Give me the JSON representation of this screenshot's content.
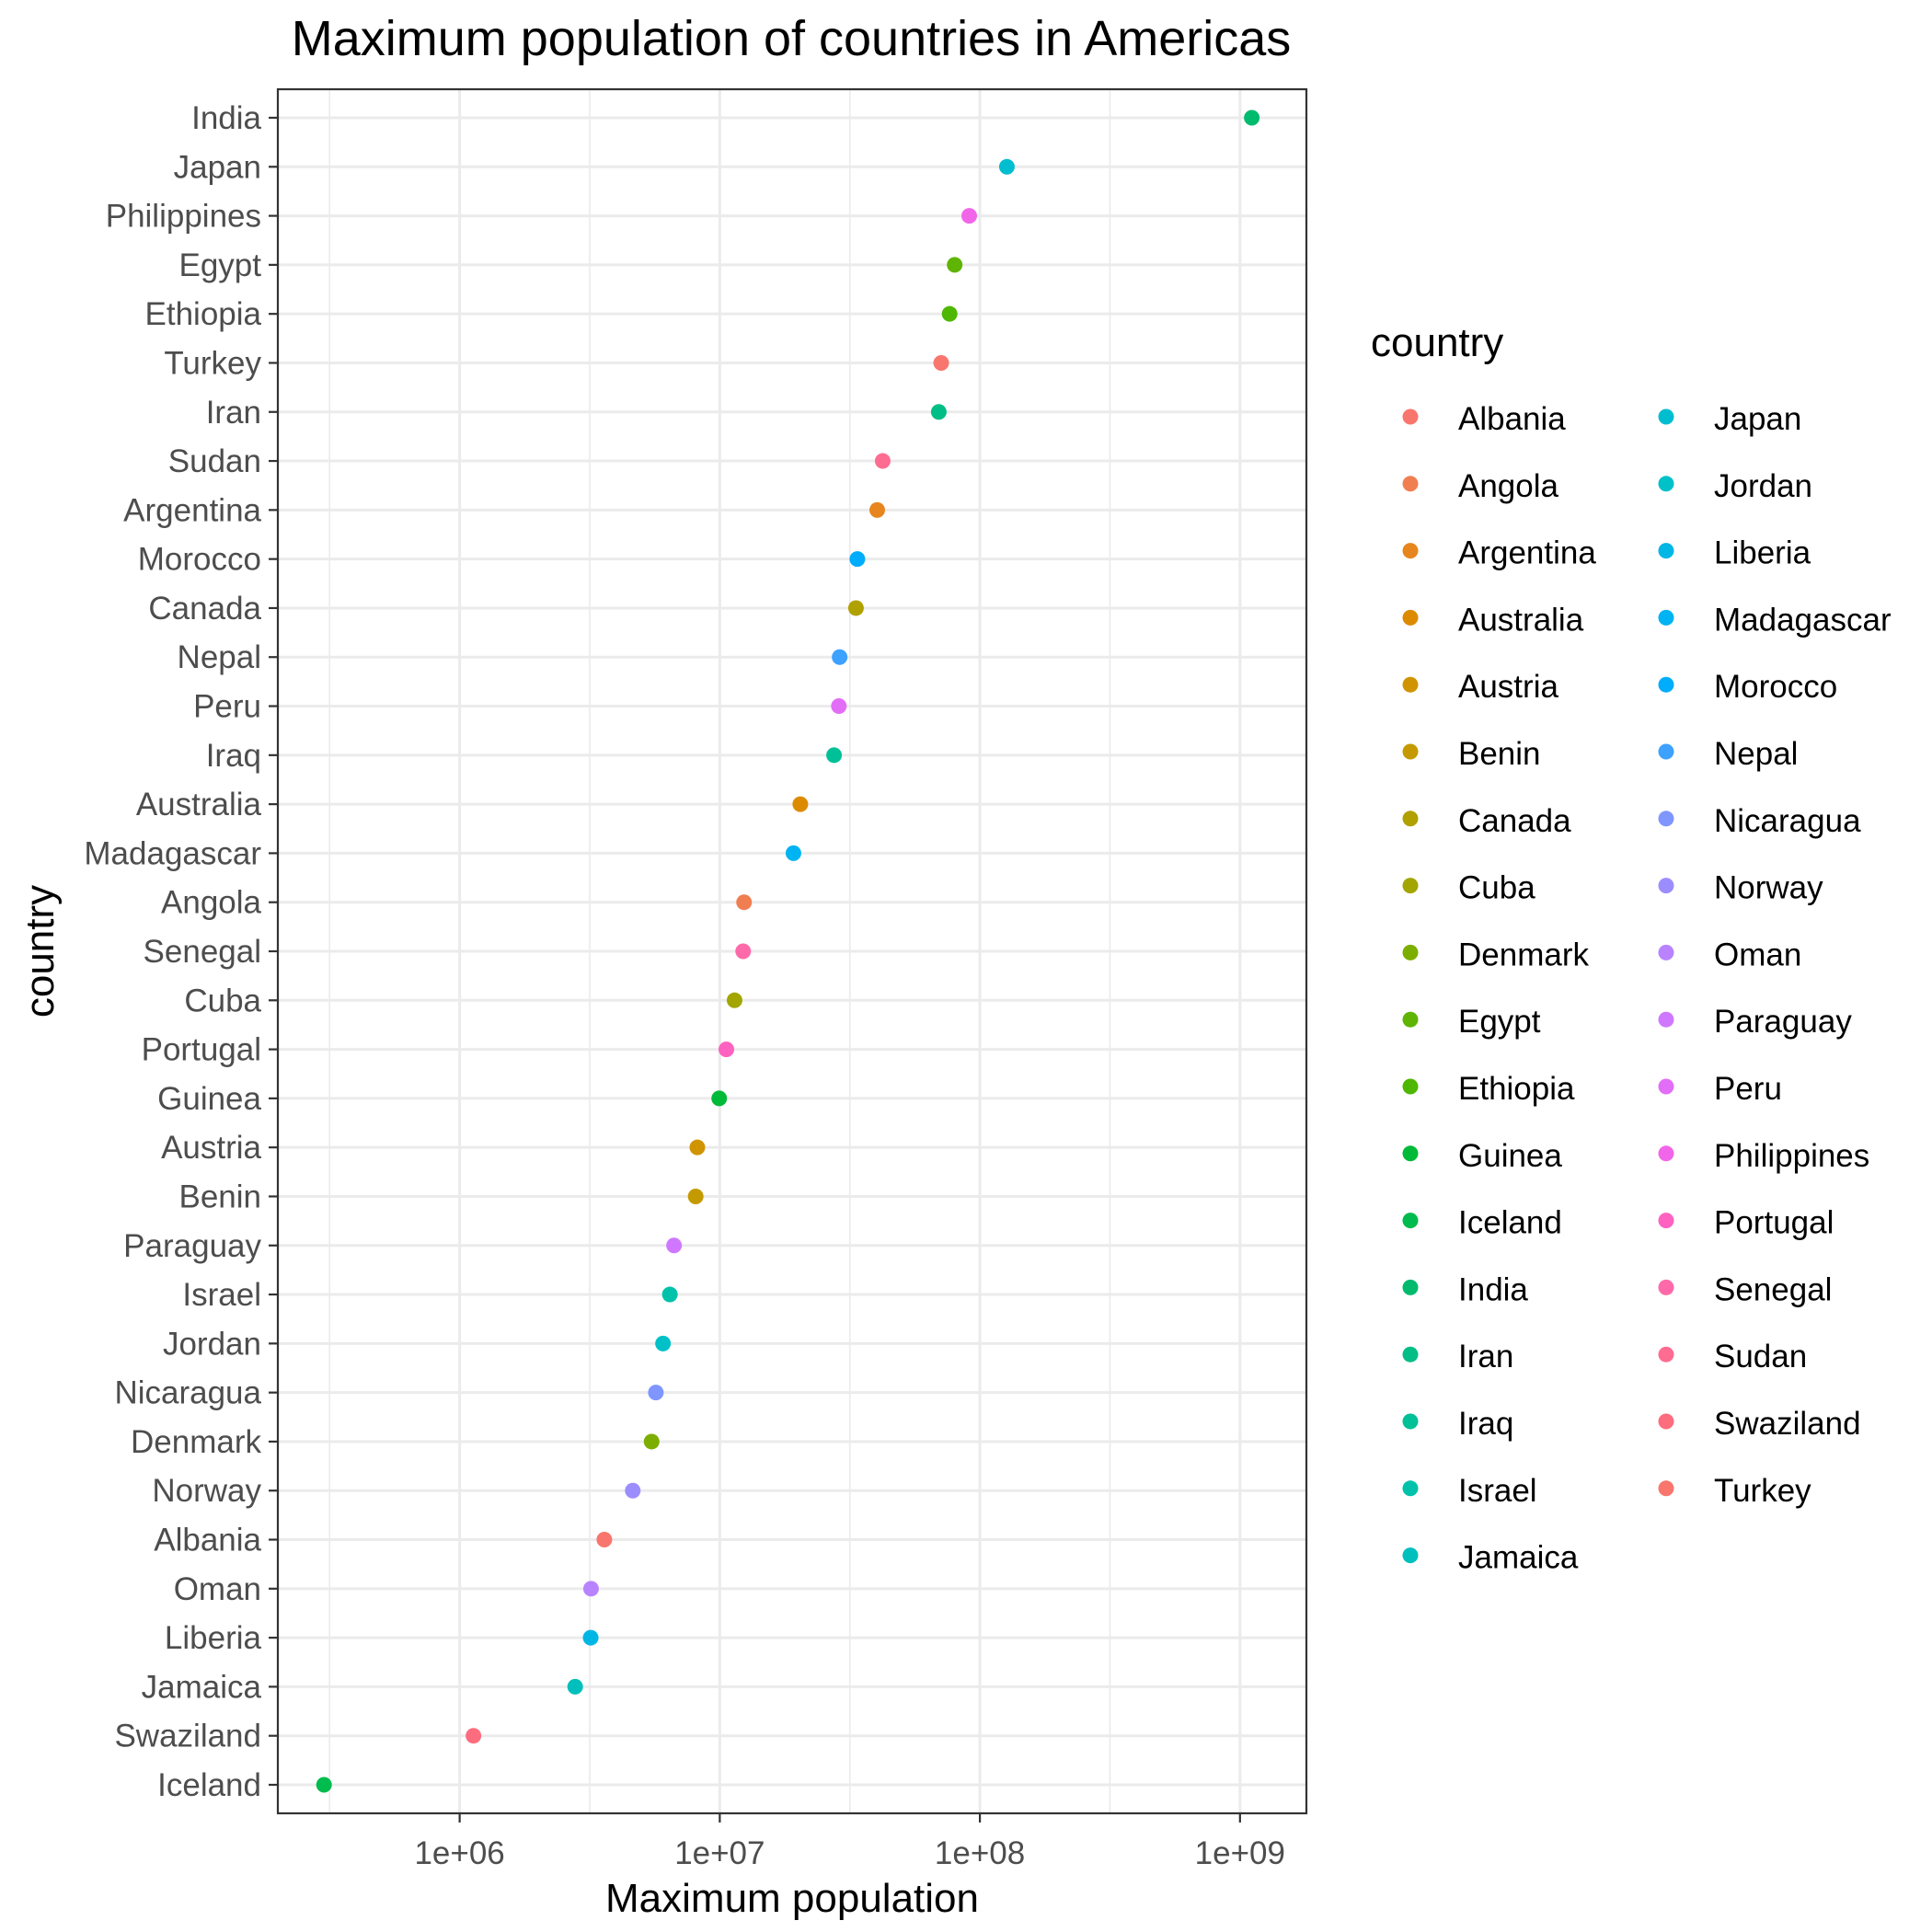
{
  "chart_data": {
    "type": "scatter",
    "title": "Maximum population of countries in Americas",
    "xlabel": "Maximum population",
    "ylabel": "country",
    "x_scale": "log10",
    "xlim": [
      200000,
      1800000000
    ],
    "x_ticks": [
      1000000,
      10000000,
      100000000,
      1000000000
    ],
    "x_tick_labels": [
      "1e+06",
      "1e+07",
      "1e+08",
      "1e+09"
    ],
    "grid": true,
    "legend": {
      "title": "country",
      "placement": "right",
      "columns": 2
    },
    "points": [
      {
        "country": "India",
        "value": 1110000000,
        "color": "#00BA6E"
      },
      {
        "country": "Japan",
        "value": 127000000,
        "color": "#00BDD0"
      },
      {
        "country": "Philippines",
        "value": 91000000,
        "color": "#F166E8"
      },
      {
        "country": "Egypt",
        "value": 80000000,
        "color": "#5FB404"
      },
      {
        "country": "Ethiopia",
        "value": 76500000,
        "color": "#4DB703"
      },
      {
        "country": "Turkey",
        "value": 71000000,
        "color": "#F8766D"
      },
      {
        "country": "Iran",
        "value": 69500000,
        "color": "#00BE85"
      },
      {
        "country": "Sudan",
        "value": 42300000,
        "color": "#FF6C91"
      },
      {
        "country": "Argentina",
        "value": 40300000,
        "color": "#E7851E"
      },
      {
        "country": "Morocco",
        "value": 33800000,
        "color": "#00ACFC"
      },
      {
        "country": "Canada",
        "value": 33400000,
        "color": "#B0A100"
      },
      {
        "country": "Nepal",
        "value": 28900000,
        "color": "#3DA1FF"
      },
      {
        "country": "Peru",
        "value": 28700000,
        "color": "#E26EF7"
      },
      {
        "country": "Iraq",
        "value": 27500000,
        "color": "#00C097"
      },
      {
        "country": "Australia",
        "value": 20400000,
        "color": "#DC8B00"
      },
      {
        "country": "Madagascar",
        "value": 19200000,
        "color": "#00B3F2"
      },
      {
        "country": "Angola",
        "value": 12400000,
        "color": "#F07E50"
      },
      {
        "country": "Senegal",
        "value": 12300000,
        "color": "#FE6AA9"
      },
      {
        "country": "Cuba",
        "value": 11400000,
        "color": "#A3A500"
      },
      {
        "country": "Portugal",
        "value": 10600000,
        "color": "#FD62C0"
      },
      {
        "country": "Guinea",
        "value": 9950000,
        "color": "#00BA38"
      },
      {
        "country": "Austria",
        "value": 8200000,
        "color": "#D09400"
      },
      {
        "country": "Benin",
        "value": 8080000,
        "color": "#C49A00"
      },
      {
        "country": "Paraguay",
        "value": 6670000,
        "color": "#CF78FF"
      },
      {
        "country": "Israel",
        "value": 6430000,
        "color": "#00C1AA"
      },
      {
        "country": "Jordan",
        "value": 6050000,
        "color": "#00C0C8"
      },
      {
        "country": "Nicaragua",
        "value": 5680000,
        "color": "#7F96FF"
      },
      {
        "country": "Denmark",
        "value": 5470000,
        "color": "#7CAE00"
      },
      {
        "country": "Norway",
        "value": 4630000,
        "color": "#9C8DFF"
      },
      {
        "country": "Albania",
        "value": 3600000,
        "color": "#F8766D"
      },
      {
        "country": "Oman",
        "value": 3200000,
        "color": "#B983FF"
      },
      {
        "country": "Liberia",
        "value": 3190000,
        "color": "#00B6E5"
      },
      {
        "country": "Jamaica",
        "value": 2780000,
        "color": "#00BFBC"
      },
      {
        "country": "Swaziland",
        "value": 1130000,
        "color": "#FD6D7E"
      },
      {
        "country": "Iceland",
        "value": 301000,
        "color": "#00BB4E"
      }
    ],
    "legend_entries": [
      {
        "label": "Albania",
        "color": "#F8766D"
      },
      {
        "label": "Angola",
        "color": "#F07E50"
      },
      {
        "label": "Argentina",
        "color": "#E7851E"
      },
      {
        "label": "Australia",
        "color": "#DC8B00"
      },
      {
        "label": "Austria",
        "color": "#D09400"
      },
      {
        "label": "Benin",
        "color": "#C49A00"
      },
      {
        "label": "Canada",
        "color": "#B0A100"
      },
      {
        "label": "Cuba",
        "color": "#A3A500"
      },
      {
        "label": "Denmark",
        "color": "#7CAE00"
      },
      {
        "label": "Egypt",
        "color": "#5FB404"
      },
      {
        "label": "Ethiopia",
        "color": "#4DB703"
      },
      {
        "label": "Guinea",
        "color": "#00BA38"
      },
      {
        "label": "Iceland",
        "color": "#00BB4E"
      },
      {
        "label": "India",
        "color": "#00BA6E"
      },
      {
        "label": "Iran",
        "color": "#00BE85"
      },
      {
        "label": "Iraq",
        "color": "#00C097"
      },
      {
        "label": "Israel",
        "color": "#00C1AA"
      },
      {
        "label": "Jamaica",
        "color": "#00BFBC"
      },
      {
        "label": "Japan",
        "color": "#00BDD0"
      },
      {
        "label": "Jordan",
        "color": "#00C0C8"
      },
      {
        "label": "Liberia",
        "color": "#00B6E5"
      },
      {
        "label": "Madagascar",
        "color": "#00B3F2"
      },
      {
        "label": "Morocco",
        "color": "#00ACFC"
      },
      {
        "label": "Nepal",
        "color": "#3DA1FF"
      },
      {
        "label": "Nicaragua",
        "color": "#7F96FF"
      },
      {
        "label": "Norway",
        "color": "#9C8DFF"
      },
      {
        "label": "Oman",
        "color": "#B983FF"
      },
      {
        "label": "Paraguay",
        "color": "#CF78FF"
      },
      {
        "label": "Peru",
        "color": "#E26EF7"
      },
      {
        "label": "Philippines",
        "color": "#F166E8"
      },
      {
        "label": "Portugal",
        "color": "#FD62C0"
      },
      {
        "label": "Senegal",
        "color": "#FE6AA9"
      },
      {
        "label": "Sudan",
        "color": "#FF6C91"
      },
      {
        "label": "Swaziland",
        "color": "#FD6D7E"
      },
      {
        "label": "Turkey",
        "color": "#F8766D"
      }
    ]
  }
}
